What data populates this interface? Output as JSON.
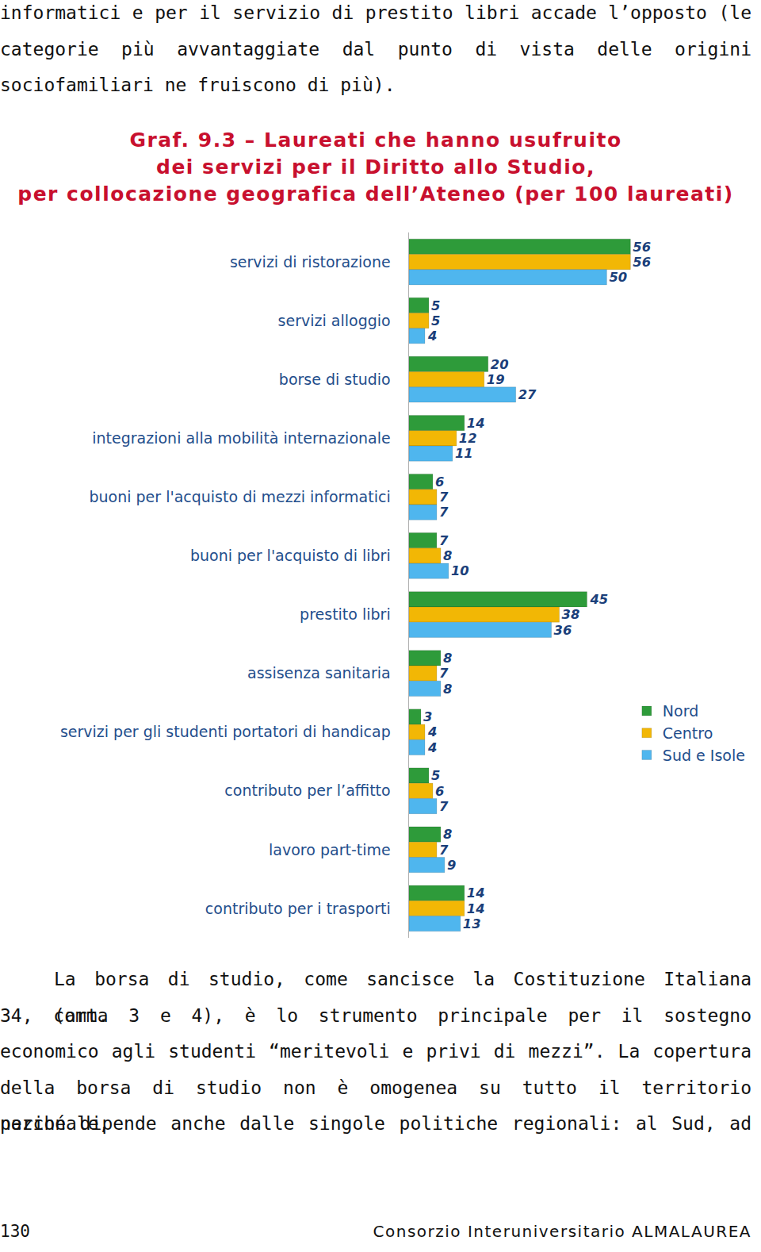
{
  "text_top": [
    "informatici e per il servizio di prestito libri accade l’opposto (le",
    "categorie più avvantaggiate dal punto di vista delle origini",
    "sociofamiliari ne fruiscono di più)."
  ],
  "chart_data": {
    "type": "bar",
    "orientation": "horizontal",
    "title": "Graf. 9.3 – Laureati che hanno usufruito\ndei servizi per il Diritto allo Studio,\nper collocazione geografica dell’Ateneo (per 100 laureati)",
    "categories": [
      "servizi di ristorazione",
      "servizi alloggio",
      "borse di studio",
      "integrazioni alla mobilità internazionale",
      "buoni per l'acquisto di mezzi informatici",
      "buoni per l'acquisto di libri",
      "prestito libri",
      "assisenza sanitaria",
      "servizi per gli studenti portatori di handicap",
      "contributo per l’affitto",
      "lavoro part-time",
      "contributo per i trasporti"
    ],
    "series": [
      {
        "name": "Nord",
        "color": "#2e9b3a",
        "values": [
          56,
          5,
          20,
          14,
          6,
          7,
          45,
          8,
          3,
          5,
          8,
          14
        ]
      },
      {
        "name": "Centro",
        "color": "#f2b705",
        "values": [
          56,
          5,
          19,
          12,
          7,
          8,
          38,
          7,
          4,
          6,
          7,
          14
        ]
      },
      {
        "name": "Sud e Isole",
        "color": "#4fb6ee",
        "values": [
          50,
          4,
          27,
          11,
          7,
          10,
          36,
          8,
          4,
          7,
          9,
          13
        ]
      }
    ],
    "xlim": [
      0,
      85
    ],
    "tick_labels": "y",
    "grid": false,
    "data_labels": true,
    "legend": "right"
  },
  "text_bottom": [
    "La borsa di studio, come sancisce la Costituzione Italiana (art.",
    "34, comma 3 e 4), è lo strumento principale per il sostegno",
    "economico agli studenti “meritevoli e privi di mezzi”. La copertura",
    "della borsa di studio non è omogenea su tutto il territorio nazionale,",
    "perché dipende anche dalle singole politiche regionali: al Sud, ad"
  ],
  "footer": {
    "page": "130",
    "publisher": "Consorzio Interuniversitario ALMALAUREA"
  }
}
